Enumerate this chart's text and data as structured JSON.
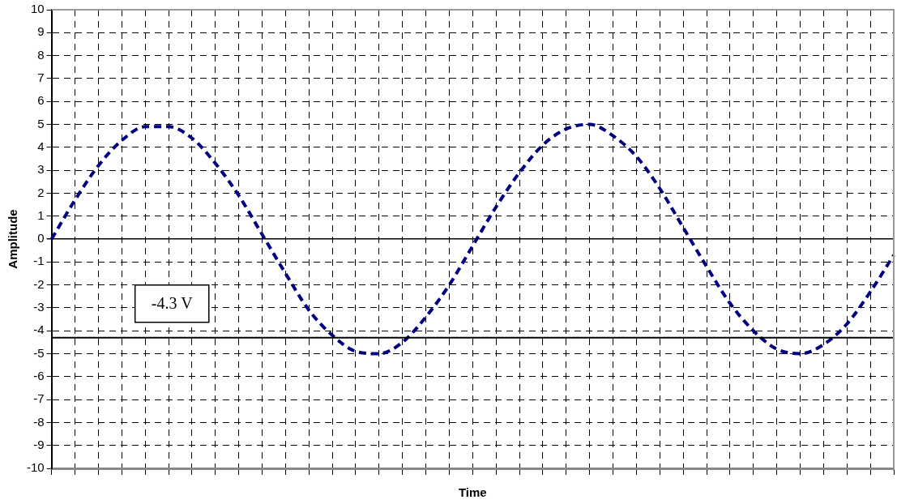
{
  "chart_data": {
    "type": "line",
    "xlabel": "Time",
    "ylabel": "Amplitude",
    "categories": [
      null,
      null,
      null,
      null,
      null,
      null,
      null,
      null,
      null,
      null,
      null,
      null,
      null,
      null,
      null,
      null,
      null,
      null,
      null,
      null,
      null,
      null,
      null,
      null,
      null,
      null,
      null,
      null,
      null,
      null,
      null,
      null,
      null,
      null,
      null,
      null,
      null
    ],
    "series": [
      {
        "color": "#000080",
        "values": [
          0,
          1.7,
          3.2,
          4.3,
          4.9,
          4.9,
          4.4,
          3.3,
          1.9,
          0.2,
          -1.5,
          -3.1,
          -4.2,
          -4.9,
          -5.0,
          -4.5,
          -3.4,
          -2.0,
          -0.3,
          1.4,
          2.9,
          4.1,
          4.8,
          5.0,
          4.5,
          3.6,
          2.2,
          0.5,
          -1.2,
          -2.8,
          -4.0,
          -4.8,
          -5.0,
          -4.6,
          -3.7,
          -2.3,
          -0.7
        ]
      }
    ],
    "ylim": [
      -10,
      10
    ],
    "yticks": [
      -10,
      -9,
      -8,
      -7,
      -6,
      -5,
      -4,
      -3,
      -2,
      -1,
      0,
      1,
      2,
      3,
      4,
      5,
      6,
      7,
      8,
      9,
      10
    ],
    "ref_lines": [
      {
        "axis": "y",
        "value": -4.3,
        "label": "-4.3 V",
        "color": "#000000",
        "line_style": "solid"
      }
    ],
    "grid": true,
    "legend": false,
    "marker": "none",
    "line_style": "dashed",
    "tick_labels": "y"
  }
}
